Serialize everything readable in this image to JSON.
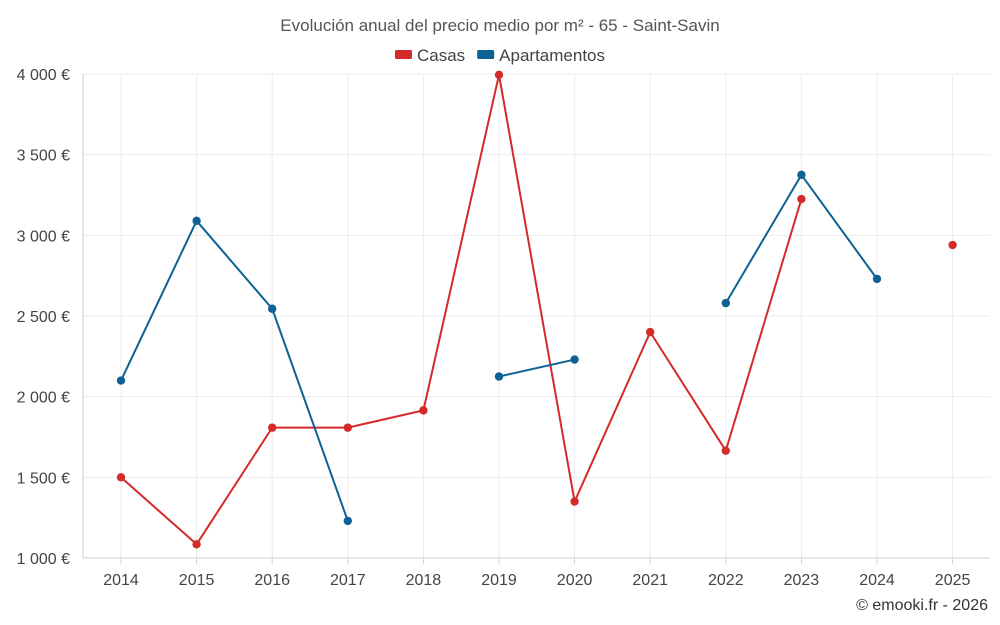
{
  "chart_data": {
    "type": "line",
    "title": "Evolución anual del precio medio por m² - 65 - Saint-Savin",
    "categories": [
      "2014",
      "2015",
      "2016",
      "2017",
      "2018",
      "2019",
      "2020",
      "2021",
      "2022",
      "2023",
      "2024",
      "2025"
    ],
    "series": [
      {
        "name": "Casas",
        "color": "#d42a2a",
        "values": [
          1500,
          1085,
          1808,
          1808,
          1915,
          3995,
          1350,
          2400,
          1665,
          3225,
          null,
          2940
        ]
      },
      {
        "name": "Apartamentos",
        "color": "#0d6194",
        "values": [
          2100,
          3090,
          2545,
          1230,
          null,
          2125,
          2230,
          null,
          2580,
          3375,
          2730,
          null
        ]
      }
    ],
    "ylim": [
      1000,
      4000
    ],
    "yticks": [
      1000,
      1500,
      2000,
      2500,
      3000,
      3500,
      4000
    ],
    "ytick_labels": [
      "1 000 €",
      "1 500 €",
      "2 000 €",
      "2 500 €",
      "3 000 €",
      "3 500 €",
      "4 000 €"
    ],
    "xlabel": "",
    "ylabel": "",
    "grid": true,
    "legend": "top-center"
  },
  "credit": "© emooki.fr - 2026"
}
